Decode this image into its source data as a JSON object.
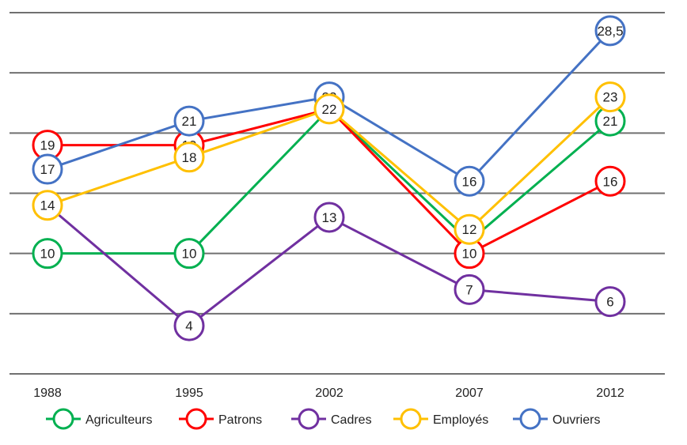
{
  "chart_data": {
    "type": "line",
    "categories": [
      "1988",
      "1995",
      "2002",
      "2007",
      "2012"
    ],
    "ylim": [
      0,
      30
    ],
    "grid": true,
    "legend_position": "bottom",
    "series": [
      {
        "name": "Agriculteurs",
        "color": "#00b050",
        "values": [
          10,
          10,
          22,
          11,
          21
        ],
        "labels": [
          "10",
          "10",
          "",
          "",
          "21"
        ]
      },
      {
        "name": "Patrons",
        "color": "#ff0000",
        "values": [
          19,
          19,
          22,
          10,
          16
        ],
        "labels": [
          "19",
          "19",
          "",
          "10",
          "16"
        ]
      },
      {
        "name": "Cadres",
        "color": "#7030a0",
        "values": [
          14,
          4,
          13,
          7,
          6
        ],
        "labels": [
          "",
          "4",
          "13",
          "7",
          "6"
        ]
      },
      {
        "name": "Ouvriers",
        "color": "#4472c4",
        "values": [
          17,
          21,
          23,
          16,
          28.5
        ],
        "labels": [
          "17",
          "21",
          "23",
          "16",
          "28,5"
        ]
      },
      {
        "name": "Employés",
        "color": "#ffc000",
        "values": [
          14,
          18,
          22,
          12,
          23
        ],
        "labels": [
          "14",
          "18",
          "22",
          "12",
          "23"
        ]
      }
    ],
    "legend_order": [
      "Agriculteurs",
      "Patrons",
      "Cadres",
      "Employés",
      "Ouvriers"
    ]
  }
}
